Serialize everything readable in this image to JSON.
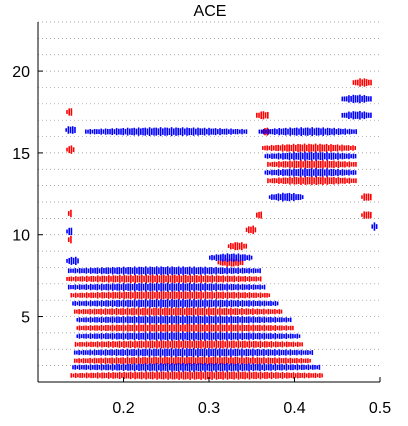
{
  "chart_data": {
    "type": "scatter",
    "title": "ACE",
    "xlabel": "",
    "ylabel": "",
    "xlim": [
      0.1,
      0.5
    ],
    "ylim": [
      1,
      23
    ],
    "xticks": [
      0.2,
      0.3,
      0.4,
      0.5
    ],
    "xtick_labels": [
      "0.2",
      "0.3",
      "0.4",
      "0.5"
    ],
    "yticks": [
      5,
      10,
      15,
      20
    ],
    "ytick_labels": [
      "5",
      "10",
      "15",
      "20"
    ],
    "grid": "horizontal-dotted",
    "colors": {
      "red": "#ff0000",
      "blue": "#0000ff"
    },
    "series": [
      {
        "color": "red",
        "bands": [
          {
            "y": 1.4,
            "x": [
              0.138,
              0.432
            ]
          },
          {
            "y": 2.3,
            "x": [
              0.142,
              0.418
            ]
          },
          {
            "y": 3.3,
            "x": [
              0.143,
              0.41
            ]
          },
          {
            "y": 4.3,
            "x": [
              0.145,
              0.398
            ]
          },
          {
            "y": 5.3,
            "x": [
              0.142,
              0.385
            ]
          },
          {
            "y": 6.3,
            "x": [
              0.138,
              0.37
            ]
          },
          {
            "y": 7.3,
            "x": [
              0.133,
              0.362
            ]
          },
          {
            "y": 8.3,
            "x": [
              0.31,
              0.34
            ]
          },
          {
            "y": 9.3,
            "x": [
              0.322,
              0.343
            ]
          },
          {
            "y": 10.3,
            "x": [
              0.343,
              0.355
            ]
          },
          {
            "y": 11.2,
            "x": [
              0.355,
              0.362
            ]
          },
          {
            "y": 13.3,
            "x": [
              0.368,
              0.472
            ]
          },
          {
            "y": 14.3,
            "x": [
              0.368,
              0.472
            ]
          },
          {
            "y": 15.3,
            "x": [
              0.362,
              0.472
            ]
          },
          {
            "y": 16.3,
            "x": [
              0.362,
              0.37
            ]
          },
          {
            "y": 17.3,
            "x": [
              0.355,
              0.37
            ]
          },
          {
            "y": 19.3,
            "x": [
              0.468,
              0.49
            ]
          },
          {
            "y": 12.3,
            "x": [
              0.478,
              0.49
            ]
          },
          {
            "y": 11.2,
            "x": [
              0.478,
              0.49
            ]
          },
          {
            "y": 15.2,
            "x": [
              0.133,
              0.142
            ]
          },
          {
            "y": 17.5,
            "x": [
              0.133,
              0.14
            ]
          },
          {
            "y": 11.3,
            "x": [
              0.135,
              0.14
            ]
          },
          {
            "y": 9.7,
            "x": [
              0.135,
              0.14
            ]
          }
        ]
      },
      {
        "color": "blue",
        "bands": [
          {
            "y": 1.9,
            "x": [
              0.14,
              0.43
            ]
          },
          {
            "y": 2.8,
            "x": [
              0.142,
              0.42
            ]
          },
          {
            "y": 3.8,
            "x": [
              0.145,
              0.405
            ]
          },
          {
            "y": 4.8,
            "x": [
              0.145,
              0.395
            ]
          },
          {
            "y": 5.8,
            "x": [
              0.14,
              0.38
            ]
          },
          {
            "y": 6.8,
            "x": [
              0.135,
              0.365
            ]
          },
          {
            "y": 7.8,
            "x": [
              0.135,
              0.36
            ]
          },
          {
            "y": 8.6,
            "x": [
              0.3,
              0.35
            ]
          },
          {
            "y": 12.3,
            "x": [
              0.37,
              0.41
            ]
          },
          {
            "y": 13.8,
            "x": [
              0.365,
              0.472
            ]
          },
          {
            "y": 14.8,
            "x": [
              0.365,
              0.472
            ]
          },
          {
            "y": 16.3,
            "x": [
              0.155,
              0.345
            ]
          },
          {
            "y": 16.3,
            "x": [
              0.358,
              0.472
            ]
          },
          {
            "y": 17.3,
            "x": [
              0.455,
              0.49
            ]
          },
          {
            "y": 18.3,
            "x": [
              0.455,
              0.49
            ]
          },
          {
            "y": 16.4,
            "x": [
              0.132,
              0.144
            ]
          },
          {
            "y": 8.4,
            "x": [
              0.133,
              0.148
            ]
          },
          {
            "y": 10.2,
            "x": [
              0.133,
              0.14
            ]
          },
          {
            "y": 10.5,
            "x": [
              0.49,
              0.496
            ]
          }
        ]
      }
    ]
  }
}
